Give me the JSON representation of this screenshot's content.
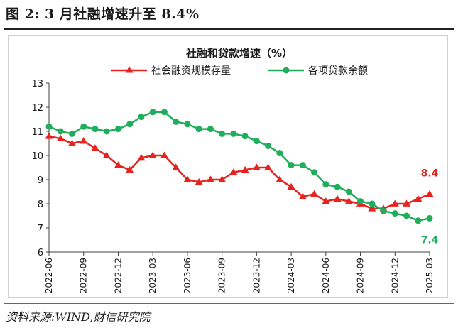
{
  "header": {
    "figure_caption": "图 2:  3 月社融增速升至 8.4%"
  },
  "footer": {
    "source": "资料来源:WIND,财信研究院"
  },
  "colors": {
    "social_financing": "#e8231f",
    "loans": "#1fae5b",
    "axis": "#404040",
    "text": "#1a1a1a"
  },
  "chart_data": {
    "type": "line",
    "title": "社融和贷款增速（%）",
    "xlabel": "",
    "ylabel": "",
    "ylim": [
      6,
      13
    ],
    "yticks": [
      "6",
      "7",
      "8",
      "9",
      "10",
      "11",
      "12",
      "13"
    ],
    "grid": false,
    "legend": "top-center",
    "x": [
      "2022-06",
      "2022-07",
      "2022-08",
      "2022-09",
      "2022-10",
      "2022-11",
      "2022-12",
      "2023-01",
      "2023-02",
      "2023-03",
      "2023-04",
      "2023-05",
      "2023-06",
      "2023-07",
      "2023-08",
      "2023-09",
      "2023-10",
      "2023-11",
      "2023-12",
      "2024-01",
      "2024-02",
      "2024-03",
      "2024-04",
      "2024-05",
      "2024-06",
      "2024-07",
      "2024-08",
      "2024-09",
      "2024-10",
      "2024-11",
      "2024-12",
      "2025-01",
      "2025-02",
      "2025-03"
    ],
    "x_tick_labels": [
      "2022-06",
      "2022-09",
      "2022-12",
      "2023-03",
      "2023-06",
      "2023-09",
      "2023-12",
      "2024-03",
      "2024-06",
      "2024-09",
      "2024-12",
      "2025-03"
    ],
    "series": [
      {
        "name": "社会融资规模存量",
        "marker": "triangle",
        "color": "#e8231f",
        "values": [
          10.8,
          10.7,
          10.5,
          10.6,
          10.3,
          10.0,
          9.6,
          9.4,
          9.9,
          10.0,
          10.0,
          9.5,
          9.0,
          8.9,
          9.0,
          9.0,
          9.3,
          9.4,
          9.5,
          9.5,
          9.0,
          8.7,
          8.3,
          8.4,
          8.1,
          8.2,
          8.1,
          8.0,
          7.8,
          7.8,
          8.0,
          8.0,
          8.2,
          8.4
        ],
        "end_label": "8.4"
      },
      {
        "name": "各项贷款余额",
        "marker": "circle",
        "color": "#1fae5b",
        "values": [
          11.2,
          11.0,
          10.9,
          11.2,
          11.1,
          11.0,
          11.1,
          11.3,
          11.6,
          11.8,
          11.8,
          11.4,
          11.3,
          11.1,
          11.1,
          10.9,
          10.9,
          10.8,
          10.6,
          10.4,
          10.1,
          9.6,
          9.6,
          9.3,
          8.8,
          8.7,
          8.5,
          8.1,
          8.0,
          7.7,
          7.6,
          7.5,
          7.3,
          7.4
        ],
        "end_label": "7.4"
      }
    ]
  }
}
